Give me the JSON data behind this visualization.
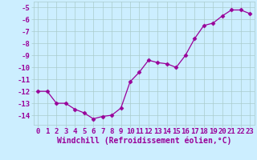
{
  "x": [
    0,
    1,
    2,
    3,
    4,
    5,
    6,
    7,
    8,
    9,
    10,
    11,
    12,
    13,
    14,
    15,
    16,
    17,
    18,
    19,
    20,
    21,
    22,
    23
  ],
  "y": [
    -12.0,
    -12.0,
    -13.0,
    -13.0,
    -13.5,
    -13.8,
    -14.3,
    -14.1,
    -14.0,
    -13.4,
    -11.2,
    -10.4,
    -9.4,
    -9.6,
    -9.7,
    -10.0,
    -9.0,
    -7.6,
    -6.5,
    -6.3,
    -5.7,
    -5.2,
    -5.2,
    -5.5
  ],
  "line_color": "#990099",
  "marker": "D",
  "marker_size": 2.5,
  "bg_color": "#cceeff",
  "grid_color": "#aacccc",
  "xlabel": "Windchill (Refroidissement éolien,°C)",
  "xlabel_fontsize": 7,
  "tick_fontsize": 6.5,
  "ylim": [
    -14.8,
    -4.5
  ],
  "xlim": [
    -0.5,
    23.5
  ],
  "yticks": [
    -14,
    -13,
    -12,
    -11,
    -10,
    -9,
    -8,
    -7,
    -6,
    -5
  ],
  "xticks": [
    0,
    1,
    2,
    3,
    4,
    5,
    6,
    7,
    8,
    9,
    10,
    11,
    12,
    13,
    14,
    15,
    16,
    17,
    18,
    19,
    20,
    21,
    22,
    23
  ]
}
